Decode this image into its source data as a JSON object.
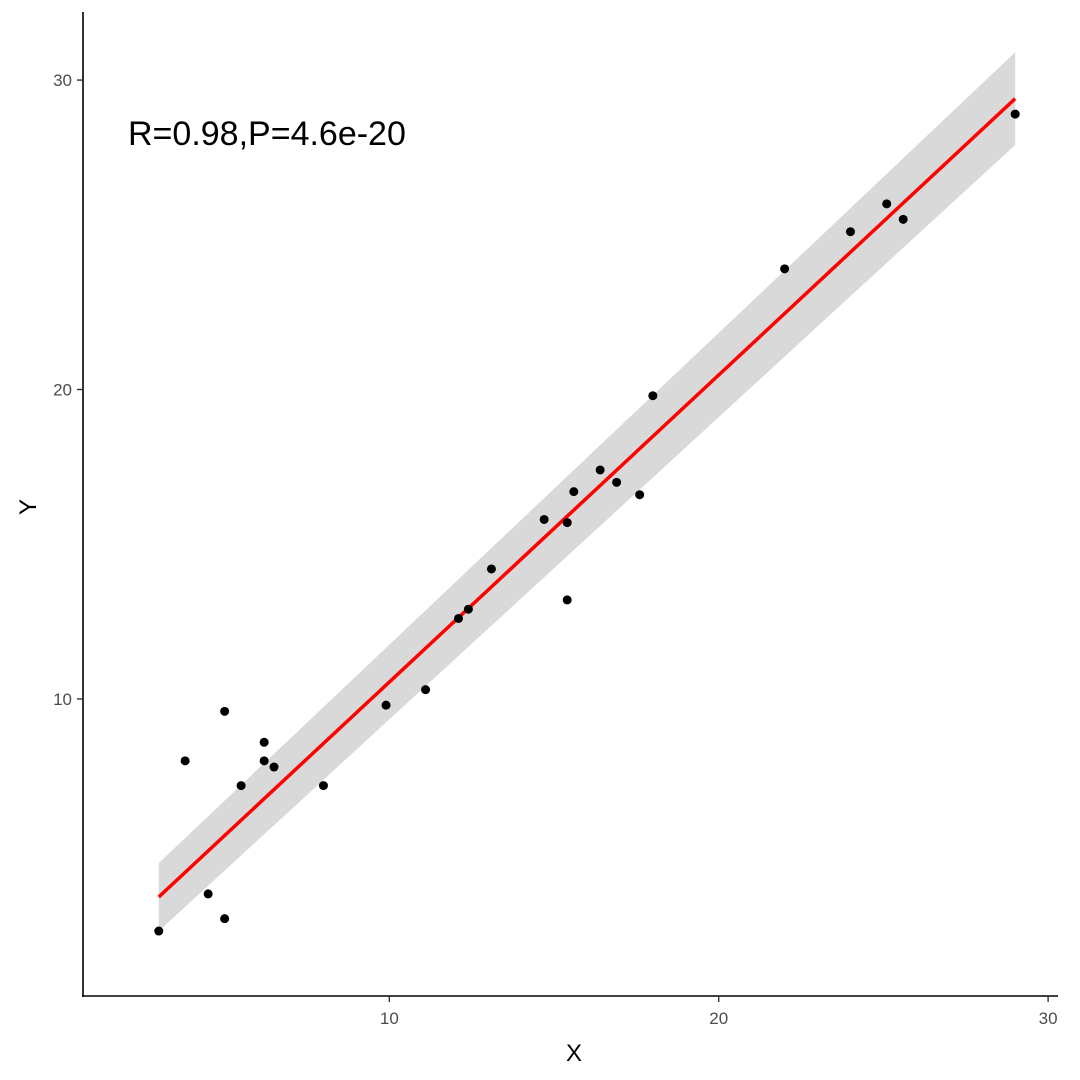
{
  "chart_data": {
    "type": "scatter",
    "title": "",
    "xlabel": "X",
    "ylabel": "Y",
    "xlim": [
      0.7,
      30.3
    ],
    "ylim": [
      0.4,
      32.2
    ],
    "x_ticks": [
      10,
      20,
      30
    ],
    "y_ticks": [
      10,
      20,
      30
    ],
    "grid": false,
    "annotation": "R=0.98,P=4.6e-20",
    "points": [
      {
        "x": 3.0,
        "y": 2.5
      },
      {
        "x": 3.8,
        "y": 8.0
      },
      {
        "x": 4.5,
        "y": 3.7
      },
      {
        "x": 5.0,
        "y": 9.6
      },
      {
        "x": 5.0,
        "y": 2.9
      },
      {
        "x": 5.5,
        "y": 7.2
      },
      {
        "x": 6.2,
        "y": 8.6
      },
      {
        "x": 6.2,
        "y": 8.0
      },
      {
        "x": 6.5,
        "y": 7.8
      },
      {
        "x": 8.0,
        "y": 7.2
      },
      {
        "x": 9.9,
        "y": 9.8
      },
      {
        "x": 11.1,
        "y": 10.3
      },
      {
        "x": 12.1,
        "y": 12.6
      },
      {
        "x": 12.4,
        "y": 12.9
      },
      {
        "x": 13.1,
        "y": 14.2
      },
      {
        "x": 14.7,
        "y": 15.8
      },
      {
        "x": 15.4,
        "y": 15.7
      },
      {
        "x": 15.4,
        "y": 13.2
      },
      {
        "x": 15.6,
        "y": 16.7
      },
      {
        "x": 16.4,
        "y": 17.4
      },
      {
        "x": 16.9,
        "y": 17.0
      },
      {
        "x": 17.6,
        "y": 16.6
      },
      {
        "x": 18.0,
        "y": 19.8
      },
      {
        "x": 22.0,
        "y": 23.9
      },
      {
        "x": 24.0,
        "y": 25.1
      },
      {
        "x": 25.1,
        "y": 26.0
      },
      {
        "x": 25.6,
        "y": 25.5
      },
      {
        "x": 29.0,
        "y": 28.9
      }
    ],
    "fit": {
      "x": [
        3.0,
        29.0
      ],
      "y": [
        3.6,
        29.4
      ],
      "ci_lower": [
        2.5,
        27.9
      ],
      "ci_upper": [
        4.7,
        30.9
      ]
    },
    "colors": {
      "points": "#000000",
      "fit_line": "#ff0000",
      "ci_band": "#d9d9d9",
      "axis": "#000000",
      "tick_text": "#4d4d4d"
    }
  }
}
